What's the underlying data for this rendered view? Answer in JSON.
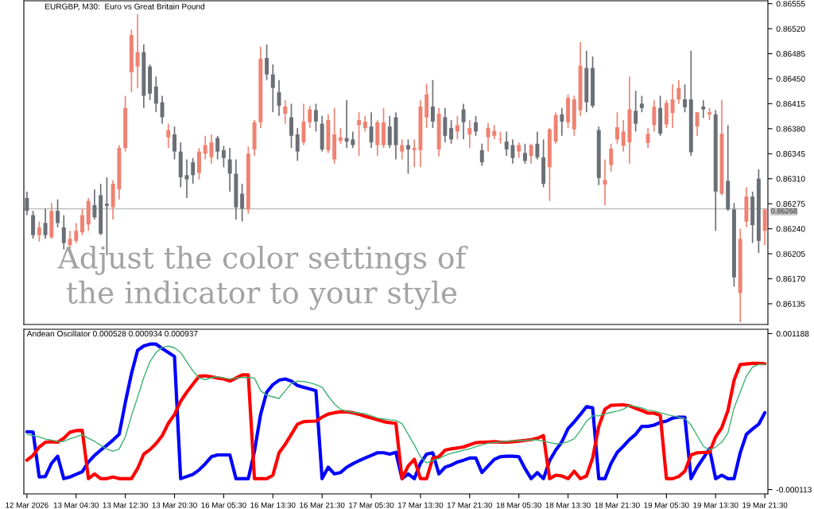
{
  "chart_data": [
    {
      "type": "candlestick",
      "title": "EURGBP, M30:  Euro vs Great Britain Pound",
      "tick_labels": "y",
      "grid": false,
      "annotations": [
        "Adjust the color settings of\nthe indicator to your style"
      ],
      "categories": [
        null,
        null,
        null,
        null,
        null,
        null,
        null,
        null,
        null,
        null,
        null,
        null,
        null,
        null,
        null,
        null,
        null,
        null,
        null,
        null,
        null,
        null,
        null,
        null,
        null,
        null,
        null,
        null,
        null,
        null,
        null,
        null,
        null,
        null,
        null,
        null,
        null,
        null,
        null,
        null,
        null,
        null,
        null,
        null,
        null,
        null,
        null,
        null,
        null,
        null,
        null,
        null,
        null,
        null,
        null,
        null,
        null,
        null,
        null,
        null,
        null,
        null,
        null,
        null,
        null,
        null,
        null,
        null,
        null,
        null,
        null,
        null,
        null,
        null,
        null,
        null,
        null,
        null,
        null,
        null,
        null,
        null,
        null,
        null,
        null,
        null,
        null,
        null,
        null,
        null,
        null,
        null,
        null,
        null,
        null,
        null,
        null,
        null,
        null,
        null,
        null,
        null,
        null,
        null,
        null,
        null,
        null,
        null,
        null,
        null,
        null,
        null,
        null,
        null,
        null,
        null,
        null,
        null,
        null,
        null,
        null
      ],
      "ohlc": [
        [
          0.86283,
          0.86292,
          0.86259,
          0.86265
        ],
        [
          0.86259,
          0.86265,
          0.86226,
          0.86231
        ],
        [
          0.86231,
          0.8625,
          0.86222,
          0.86242
        ],
        [
          0.86248,
          0.86268,
          0.86226,
          0.86231
        ],
        [
          0.86228,
          0.86276,
          0.86226,
          0.86265
        ],
        [
          0.86265,
          0.86281,
          0.86242,
          0.86248
        ],
        [
          0.86242,
          0.86259,
          0.86211,
          0.8622
        ],
        [
          0.86217,
          0.86237,
          0.86209,
          0.86226
        ],
        [
          0.86223,
          0.86248,
          0.8622,
          0.86237
        ],
        [
          0.86235,
          0.86268,
          0.86231,
          0.86259
        ],
        [
          0.86246,
          0.86283,
          0.86237,
          0.86279
        ],
        [
          0.86273,
          0.86295,
          0.86253,
          0.86256
        ],
        [
          0.86287,
          0.86303,
          0.86231,
          0.86233
        ],
        [
          0.86275,
          0.86312,
          0.86203,
          0.86272
        ],
        [
          0.8627,
          0.86308,
          0.86253,
          0.86303
        ],
        [
          0.86295,
          0.86357,
          0.86281,
          0.86353
        ],
        [
          0.86353,
          0.86426,
          0.86348,
          0.86409
        ],
        [
          0.86459,
          0.86519,
          0.86431,
          0.86511
        ],
        [
          0.86467,
          0.8654,
          0.86437,
          0.86487
        ],
        [
          0.86487,
          0.86498,
          0.86409,
          0.86426
        ],
        [
          0.86467,
          0.8647,
          0.8642,
          0.86429
        ],
        [
          0.86439,
          0.86453,
          0.86403,
          0.86415
        ],
        [
          0.86417,
          0.86426,
          0.86387,
          0.86396
        ],
        [
          0.86368,
          0.86387,
          0.86353,
          0.86378
        ],
        [
          0.86372,
          0.86383,
          0.86337,
          0.86348
        ],
        [
          0.86348,
          0.86361,
          0.86298,
          0.86312
        ],
        [
          0.86315,
          0.86337,
          0.86283,
          0.86309
        ],
        [
          0.86333,
          0.86339,
          0.86303,
          0.86315
        ],
        [
          0.86318,
          0.86353,
          0.86309,
          0.86348
        ],
        [
          0.86345,
          0.8637,
          0.86337,
          0.86357
        ],
        [
          0.8634,
          0.86372,
          0.86331,
          0.86361
        ],
        [
          0.86367,
          0.8637,
          0.86337,
          0.86348
        ],
        [
          0.8635,
          0.86356,
          0.86326,
          0.86339
        ],
        [
          0.86337,
          0.86353,
          0.86292,
          0.86317
        ],
        [
          0.86317,
          0.86337,
          0.86253,
          0.8627
        ],
        [
          0.86289,
          0.86303,
          0.8625,
          0.86268
        ],
        [
          0.86267,
          0.86355,
          0.86261,
          0.86345
        ],
        [
          0.86351,
          0.86392,
          0.86342,
          0.86389
        ],
        [
          0.86389,
          0.86495,
          0.86381,
          0.86478
        ],
        [
          0.86479,
          0.86498,
          0.86448,
          0.86456
        ],
        [
          0.86456,
          0.8647,
          0.86403,
          0.86437
        ],
        [
          0.86431,
          0.86448,
          0.86398,
          0.86412
        ],
        [
          0.86401,
          0.8642,
          0.86387,
          0.86411
        ],
        [
          0.86396,
          0.86415,
          0.86353,
          0.8637
        ],
        [
          0.86372,
          0.86381,
          0.86335,
          0.86348
        ],
        [
          0.86361,
          0.86415,
          0.86357,
          0.8639
        ],
        [
          0.86389,
          0.86412,
          0.86381,
          0.86407
        ],
        [
          0.86406,
          0.86415,
          0.86376,
          0.8639
        ],
        [
          0.86387,
          0.86398,
          0.86348,
          0.86351
        ],
        [
          0.8635,
          0.864,
          0.86346,
          0.86392
        ],
        [
          0.86337,
          0.86409,
          0.86331,
          0.86372
        ],
        [
          0.86363,
          0.86381,
          0.86359,
          0.86368
        ],
        [
          0.86367,
          0.8642,
          0.86353,
          0.86362
        ],
        [
          0.86365,
          0.86376,
          0.86353,
          0.86357
        ],
        [
          0.86385,
          0.86403,
          0.86342,
          0.86392
        ],
        [
          0.86381,
          0.86398,
          0.86376,
          0.8639
        ],
        [
          0.86383,
          0.86403,
          0.86353,
          0.86361
        ],
        [
          0.86357,
          0.86392,
          0.86342,
          0.86389
        ],
        [
          0.86357,
          0.86409,
          0.86353,
          0.86389
        ],
        [
          0.86383,
          0.86398,
          0.86353,
          0.86357
        ],
        [
          0.86396,
          0.86403,
          0.86337,
          0.86357
        ],
        [
          0.86348,
          0.86365,
          0.86337,
          0.86357
        ],
        [
          0.86357,
          0.86365,
          0.86317,
          0.86351
        ],
        [
          0.8635,
          0.86365,
          0.86326,
          0.86353
        ],
        [
          0.8635,
          0.8642,
          0.86326,
          0.86411
        ],
        [
          0.86396,
          0.86443,
          0.86381,
          0.86428
        ],
        [
          0.86411,
          0.86448,
          0.86381,
          0.8639
        ],
        [
          0.86351,
          0.86409,
          0.86341,
          0.86401
        ],
        [
          0.86396,
          0.86409,
          0.86361,
          0.8637
        ],
        [
          0.86381,
          0.86392,
          0.86359,
          0.86365
        ],
        [
          0.86376,
          0.86398,
          0.86365,
          0.86385
        ],
        [
          0.86407,
          0.86415,
          0.86365,
          0.86389
        ],
        [
          0.86372,
          0.86392,
          0.86353,
          0.86381
        ],
        [
          0.86389,
          0.86398,
          0.8637,
          0.86376
        ],
        [
          0.8635,
          0.86359,
          0.86328,
          0.86333
        ],
        [
          0.86368,
          0.86388,
          0.86348,
          0.86381
        ],
        [
          0.8637,
          0.86385,
          0.86365,
          0.86377
        ],
        [
          0.86365,
          0.86376,
          0.86359,
          0.86366
        ],
        [
          0.86362,
          0.86376,
          0.86342,
          0.86351
        ],
        [
          0.86357,
          0.86365,
          0.86331,
          0.86339
        ],
        [
          0.86348,
          0.86361,
          0.86339,
          0.86357
        ],
        [
          0.86346,
          0.86359,
          0.86331,
          0.86335
        ],
        [
          0.86342,
          0.86359,
          0.86331,
          0.86357
        ],
        [
          0.86359,
          0.86376,
          0.86337,
          0.8634
        ],
        [
          0.8634,
          0.86365,
          0.86298,
          0.86303
        ],
        [
          0.86326,
          0.86381,
          0.86279,
          0.86379
        ],
        [
          0.86362,
          0.86403,
          0.86359,
          0.86399
        ],
        [
          0.864,
          0.86409,
          0.8637,
          0.8639
        ],
        [
          0.86389,
          0.86428,
          0.86381,
          0.86423
        ],
        [
          0.86379,
          0.86426,
          0.8637,
          0.86421
        ],
        [
          0.86406,
          0.86501,
          0.86398,
          0.86468
        ],
        [
          0.86465,
          0.86489,
          0.86403,
          0.86417
        ],
        [
          0.86465,
          0.86481,
          0.86409,
          0.86412
        ],
        [
          0.86378,
          0.86383,
          0.86301,
          0.86311
        ],
        [
          0.86302,
          0.86337,
          0.86273,
          0.86308
        ],
        [
          0.86329,
          0.86359,
          0.8632,
          0.86352
        ],
        [
          0.86365,
          0.86403,
          0.86359,
          0.86382
        ],
        [
          0.86356,
          0.86392,
          0.86348,
          0.86376
        ],
        [
          0.86361,
          0.86453,
          0.86331,
          0.86407
        ],
        [
          0.86405,
          0.86433,
          0.86376,
          0.86387
        ],
        [
          0.86415,
          0.86426,
          0.86403,
          0.86409
        ],
        [
          0.8636,
          0.86381,
          0.86353,
          0.86373
        ],
        [
          0.86385,
          0.8642,
          0.86376,
          0.86411
        ],
        [
          0.86409,
          0.86426,
          0.8637,
          0.86373
        ],
        [
          0.86386,
          0.8642,
          0.86381,
          0.86416
        ],
        [
          0.86402,
          0.86442,
          0.86381,
          0.86421
        ],
        [
          0.86421,
          0.86448,
          0.86415,
          0.86437
        ],
        [
          0.86421,
          0.86442,
          0.86403,
          0.8641
        ],
        [
          0.86421,
          0.86489,
          0.86342,
          0.86347
        ],
        [
          0.86383,
          0.86403,
          0.8637,
          0.86403
        ],
        [
          0.86411,
          0.8642,
          0.86395,
          0.86407
        ],
        [
          0.864,
          0.86409,
          0.86392,
          0.86403
        ],
        [
          0.864,
          0.86406,
          0.86237,
          0.86292
        ],
        [
          0.86289,
          0.8642,
          0.86287,
          0.86373
        ],
        [
          0.86307,
          0.86385,
          0.86265,
          0.86267
        ],
        [
          0.86267,
          0.86276,
          0.86159,
          0.86172
        ],
        [
          0.8615,
          0.8624,
          0.86109,
          0.86226
        ],
        [
          0.8625,
          0.86298,
          0.86242,
          0.86285
        ],
        [
          0.86285,
          0.86292,
          0.8622,
          0.86245
        ],
        [
          0.8631,
          0.86323,
          0.86206,
          0.86223
        ],
        [
          0.86237,
          0.86268,
          0.86217,
          0.86267
        ]
      ],
      "colors": [
        "#6b6f76",
        "#6b6f76",
        "#ef8272",
        "#6b6f76",
        "#ef8272",
        "#6b6f76",
        "#6b6f76",
        "#ef8272",
        "#ef8272",
        "#ef8272",
        "#ef8272",
        "#6b6f76",
        "#6b6f76",
        "#6b6f76",
        "#ef8272",
        "#ef8272",
        "#ef8272",
        "#ef8272",
        "#ef8272",
        "#6b6f76",
        "#6b6f76",
        "#6b6f76",
        "#6b6f76",
        "#ef8272",
        "#6b6f76",
        "#6b6f76",
        "#6b6f76",
        "#6b6f76",
        "#ef8272",
        "#ef8272",
        "#ef8272",
        "#6b6f76",
        "#6b6f76",
        "#6b6f76",
        "#6b6f76",
        "#6b6f76",
        "#ef8272",
        "#ef8272",
        "#ef8272",
        "#6b6f76",
        "#6b6f76",
        "#6b6f76",
        "#ef8272",
        "#6b6f76",
        "#6b6f76",
        "#ef8272",
        "#ef8272",
        "#6b6f76",
        "#6b6f76",
        "#ef8272",
        "#ef8272",
        "#ef8272",
        "#6b6f76",
        "#6b6f76",
        "#ef8272",
        "#ef8272",
        "#6b6f76",
        "#ef8272",
        "#ef8272",
        "#6b6f76",
        "#6b6f76",
        "#ef8272",
        "#6b6f76",
        "#ef8272",
        "#ef8272",
        "#ef8272",
        "#6b6f76",
        "#ef8272",
        "#6b6f76",
        "#6b6f76",
        "#ef8272",
        "#6b6f76",
        "#ef8272",
        "#6b6f76",
        "#6b6f76",
        "#ef8272",
        "#ef8272",
        "#ef8272",
        "#6b6f76",
        "#6b6f76",
        "#ef8272",
        "#6b6f76",
        "#ef8272",
        "#6b6f76",
        "#6b6f76",
        "#ef8272",
        "#ef8272",
        "#6b6f76",
        "#ef8272",
        "#ef8272",
        "#ef8272",
        "#6b6f76",
        "#6b6f76",
        "#6b6f76",
        "#ef8272",
        "#ef8272",
        "#ef8272",
        "#ef8272",
        "#ef8272",
        "#6b6f76",
        "#6b6f76",
        "#ef8272",
        "#ef8272",
        "#6b6f76",
        "#ef8272",
        "#ef8272",
        "#ef8272",
        "#6b6f76",
        "#6b6f76",
        "#ef8272",
        "#6b6f76",
        "#ef8272",
        "#6b6f76",
        "#ef8272",
        "#6b6f76",
        "#6b6f76",
        "#ef8272",
        "#ef8272",
        "#6b6f76",
        "#6b6f76",
        "#ef8272"
      ],
      "ylim": [
        0.86106,
        0.86559
      ],
      "yticks": [
        0.86555,
        {
          "value": 0.8652,
          "label": "0.86520"
        },
        0.86485,
        {
          "value": 0.8645,
          "label": "0.86450"
        },
        0.86415,
        {
          "value": 0.8638,
          "label": "0.86380"
        },
        0.86345,
        {
          "value": 0.8631,
          "label": "0.86310"
        },
        0.86275,
        {
          "value": 0.8624,
          "label": "0.86240"
        },
        0.86205,
        {
          "value": 0.8617,
          "label": "0.86170"
        },
        0.86135
      ],
      "ref_lines": [
        {
          "axis": "y",
          "value": 0.86268,
          "label": "0.86268",
          "color": "#c0c0c0"
        }
      ]
    },
    {
      "type": "line",
      "title": "Andean Oscillator 0.000528 0.000934 0.000937",
      "grid": false,
      "categories": [
        "12 Mar 2026",
        null,
        null,
        null,
        null,
        null,
        null,
        null,
        "13 Mar 04:30",
        null,
        null,
        null,
        null,
        null,
        null,
        null,
        "13 Mar 12:30",
        null,
        null,
        null,
        null,
        null,
        null,
        null,
        "13 Mar 20:30",
        null,
        null,
        null,
        null,
        null,
        null,
        null,
        "16 Mar 05:30",
        null,
        null,
        null,
        null,
        null,
        null,
        null,
        "16 Mar 13:30",
        null,
        null,
        null,
        null,
        null,
        null,
        null,
        "16 Mar 21:30",
        null,
        null,
        null,
        null,
        null,
        null,
        null,
        "17 Mar 05:30",
        null,
        null,
        null,
        null,
        null,
        null,
        null,
        "17 Mar 13:30",
        null,
        null,
        null,
        null,
        null,
        null,
        null,
        "17 Mar 21:30",
        null,
        null,
        null,
        null,
        null,
        null,
        null,
        "18 Mar 05:30",
        null,
        null,
        null,
        null,
        null,
        null,
        null,
        "18 Mar 13:30",
        null,
        null,
        null,
        null,
        null,
        null,
        null,
        "18 Mar 21:30",
        null,
        null,
        null,
        null,
        null,
        null,
        null,
        "19 Mar 05:30",
        null,
        null,
        null,
        null,
        null,
        null,
        null,
        "19 Mar 13:30",
        null,
        null,
        null,
        null,
        null,
        null,
        null,
        "19 Mar 21:30"
      ],
      "series": [
        {
          "color": "#0000ff",
          "values": [
            0.00037,
            0.000366,
            -8e-06,
            -4e-06,
            0.000106,
            0.000165,
            -2.2e-05,
            -8e-06,
            1.4e-05,
            3.6e-05,
            0.000117,
            0.000172,
            0.000216,
            0.000256,
            0.0003,
            0.000348,
            0.000612,
            0.000854,
            0.001048,
            0.001085,
            0.0011,
            0.0011,
            0.001063,
            0.00103,
            0.000997,
            -2.2e-05,
            -4e-06,
            1.4e-05,
            5.1e-05,
            0.000102,
            0.000161,
            0.000176,
            0.000176,
            0.000176,
            -2.2e-05,
            -2.2e-05,
            -2.2e-05,
            0.000205,
            0.000513,
            0.0007,
            0.000762,
            0.000799,
            0.00081,
            0.000792,
            0.000755,
            0.00074,
            0.000726,
            0.000711,
            -2.2e-05,
            7.3e-05,
            1.8e-05,
            2.9e-05,
            7.3e-05,
            0.000102,
            0.000128,
            0.00015,
            0.000172,
            0.000194,
            0.000194,
            0.000183,
            0.000198,
            -2.2e-05,
            1.8e-05,
            -2.2e-05,
            0.000106,
            0.000183,
            0.000194,
            1.8e-05,
            7.3e-05,
            9.1e-05,
            0.000117,
            0.000132,
            0.00015,
            0.00015,
            2.9e-05,
            8.4e-05,
            0.000139,
            0.000161,
            0.000165,
            0.000165,
            0.000161,
            6.2e-05,
            -2.2e-05,
            2.9e-05,
            -2.2e-05,
            0.000128,
            0.000216,
            0.000286,
            0.000396,
            0.000451,
            0.000513,
            0.000579,
            0.000568,
            -2.2e-05,
            -2.2e-05,
            0.000106,
            0.000198,
            0.000249,
            0.000304,
            0.000348,
            0.000414,
            0.000414,
            0.000425,
            0.000447,
            0.000458,
            0.000484,
            0.000491,
            0.000491,
            -2.2e-05,
            7.3e-05,
            0.00015,
            0.000227,
            -2.2e-05,
            7e-06,
            -2.2e-05,
            -2.2e-05,
            0.000194,
            0.000348,
            0.000392,
            0.000432,
            0.000528
          ]
        },
        {
          "color": "#ff0000",
          "values": [
            0.000132,
            0.000172,
            0.000242,
            0.000282,
            0.000286,
            0.000282,
            0.000315,
            0.000366,
            0.000379,
            0.000381,
            -2.2e-05,
            1.8e-05,
            -2.2e-05,
            -2.2e-05,
            -8e-06,
            -2.2e-05,
            -2.2e-05,
            -2.2e-05,
            6.2e-05,
            0.000183,
            0.00022,
            0.000271,
            0.000337,
            0.00044,
            0.000513,
            0.000623,
            0.0007,
            0.000766,
            0.000832,
            0.000836,
            0.000828,
            0.000817,
            0.00081,
            0.000792,
            0.000817,
            0.000843,
            0.000843,
            -2.2e-05,
            -2.2e-05,
            -2.2e-05,
            7e-06,
            0.000194,
            0.000264,
            0.000348,
            0.000432,
            0.000454,
            0.000456,
            0.000458,
            0.000491,
            0.000517,
            0.000528,
            0.000535,
            0.000535,
            0.000528,
            0.000515,
            0.000498,
            0.000484,
            0.000469,
            0.000454,
            0.000445,
            0.00044,
            -2.2e-05,
            8.4e-05,
            0.000139,
            -2.2e-05,
            -2.2e-05,
            0.00015,
            0.000161,
            0.000216,
            0.000227,
            0.000234,
            0.000242,
            0.00026,
            0.000278,
            0.000282,
            0.000284,
            0.000286,
            0.000282,
            0.000282,
            0.000286,
            0.000291,
            0.000297,
            0.000304,
            0.000315,
            0.000337,
            -2.2e-05,
            7e-06,
            0.0,
            -2.2e-05,
            4e-05,
            -2.2e-05,
            0.0,
            0.00015,
            0.000414,
            0.000557,
            0.00059,
            0.000592,
            0.000594,
            0.000586,
            0.000564,
            0.000546,
            0.000524,
            0.000524,
            0.000506,
            -2.2e-05,
            -2.2e-05,
            -4e-06,
            4e-05,
            0.000176,
            0.000194,
            0.000196,
            0.000198,
            0.000326,
            0.000403,
            0.000546,
            0.000799,
            0.00093,
            0.000935,
            0.00094,
            0.00094,
            0.000937
          ]
        },
        {
          "color": "#3cb371",
          "values": [
            0.000348,
            0.000337,
            0.000326,
            0.000308,
            0.0003,
            0.000286,
            0.000289,
            0.000311,
            0.000326,
            0.000346,
            0.000315,
            0.000289,
            0.000256,
            0.000225,
            0.000207,
            0.000225,
            0.000326,
            0.000502,
            0.000656,
            0.000821,
            0.000953,
            0.00103,
            0.001074,
            0.001083,
            0.00107,
            0.00103,
            0.000953,
            0.000876,
            0.000819,
            0.000803,
            0.000821,
            0.000828,
            0.000817,
            0.00081,
            0.000817,
            0.000821,
            0.000821,
            0.000817,
            0.000711,
            0.000674,
            0.00066,
            0.000647,
            0.000711,
            0.000773,
            0.000792,
            0.000788,
            0.000779,
            0.000762,
            0.00074,
            0.000667,
            0.000601,
            0.000557,
            0.000539,
            0.000531,
            0.000526,
            0.00052,
            0.000502,
            0.000484,
            0.000476,
            0.000469,
            0.000465,
            0.000436,
            0.000348,
            0.00026,
            0.000161,
            0.00011,
            0.000128,
            0.000146,
            0.000172,
            0.00019,
            0.000201,
            0.000216,
            0.000227,
            0.000245,
            0.00026,
            0.000273,
            0.00028,
            0.000284,
            0.000289,
            0.000293,
            0.000295,
            0.000297,
            0.0003,
            0.0003,
            0.000291,
            0.00028,
            0.000269,
            0.000271,
            0.000286,
            0.000311,
            0.000377,
            0.000458,
            0.000502,
            0.000502,
            0.000517,
            0.000531,
            0.000542,
            0.000557,
            0.00059,
            0.000579,
            0.000568,
            0.00055,
            0.000542,
            0.000528,
            0.000513,
            0.000502,
            0.000491,
            0.00048,
            0.000425,
            0.000337,
            0.000249,
            0.000216,
            0.000242,
            0.000282,
            0.000359,
            0.000568,
            0.0007,
            0.000832,
            0.000909,
            0.00093,
            0.000934
          ]
        }
      ],
      "ylim": [
        -0.000149,
        0.001224
      ],
      "yticks": [
        0.001188,
        -0.000113
      ]
    }
  ]
}
